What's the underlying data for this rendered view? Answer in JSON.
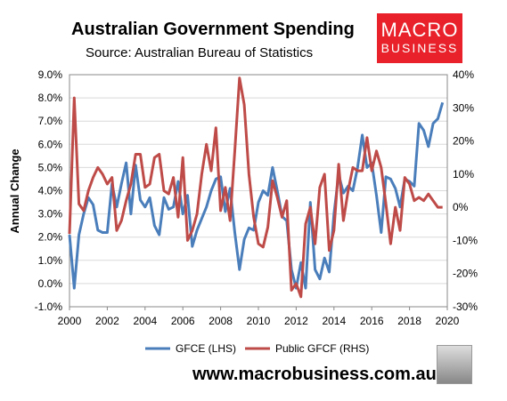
{
  "header": {
    "title": "Australian Government Spending",
    "subtitle": "Source: Australian Bureau of Statistics"
  },
  "logo": {
    "line1": "MACRO",
    "line2": "BUSINESS",
    "bg_color": "#e8212a"
  },
  "footer": {
    "url": "www.macrobusiness.com.au",
    "icon": "wolf-head-icon"
  },
  "chart_data": {
    "type": "line",
    "ylabel": "Annual Change",
    "x_ticks": [
      "2000",
      "2002",
      "2004",
      "2006",
      "2008",
      "2010",
      "2012",
      "2014",
      "2016",
      "2018",
      "2020"
    ],
    "xlim": [
      2000,
      2020
    ],
    "y_left_ticks": [
      "-1.0%",
      "0.0%",
      "1.0%",
      "2.0%",
      "3.0%",
      "4.0%",
      "5.0%",
      "6.0%",
      "7.0%",
      "8.0%",
      "9.0%"
    ],
    "y_left_lim": [
      -1,
      9
    ],
    "y_right_ticks": [
      "-30%",
      "-20%",
      "-10%",
      "0%",
      "10%",
      "20%",
      "30%",
      "40%"
    ],
    "y_right_lim": [
      -30,
      40
    ],
    "grid": true,
    "legend_position": "bottom",
    "series": [
      {
        "name": "GFCE (LHS)",
        "axis": "left",
        "color": "#4a7ebb",
        "x": [
          2000,
          2000.25,
          2000.5,
          2000.75,
          2001,
          2001.25,
          2001.5,
          2001.75,
          2002,
          2002.25,
          2002.5,
          2002.75,
          2003,
          2003.25,
          2003.5,
          2003.75,
          2004,
          2004.25,
          2004.5,
          2004.75,
          2005,
          2005.25,
          2005.5,
          2005.75,
          2006,
          2006.25,
          2006.5,
          2006.75,
          2007,
          2007.25,
          2007.5,
          2007.75,
          2008,
          2008.25,
          2008.5,
          2008.75,
          2009,
          2009.25,
          2009.5,
          2009.75,
          2010,
          2010.25,
          2010.5,
          2010.75,
          2011,
          2011.25,
          2011.5,
          2011.75,
          2012,
          2012.25,
          2012.5,
          2012.75,
          2013,
          2013.25,
          2013.5,
          2013.75,
          2014,
          2014.25,
          2014.5,
          2014.75,
          2015,
          2015.25,
          2015.5,
          2015.75,
          2016,
          2016.25,
          2016.5,
          2016.75,
          2017,
          2017.25,
          2017.5,
          2017.75,
          2018,
          2018.25,
          2018.5,
          2018.75,
          2019,
          2019.25,
          2019.5,
          2019.75
        ],
        "y": [
          2.1,
          -0.2,
          2.1,
          3.0,
          3.7,
          3.4,
          2.3,
          2.2,
          2.2,
          4.3,
          3.3,
          4.3,
          5.2,
          3.0,
          5.1,
          3.6,
          3.3,
          3.7,
          2.5,
          2.1,
          3.7,
          3.2,
          3.3,
          4.4,
          3.0,
          3.8,
          1.6,
          2.3,
          2.8,
          3.3,
          4.0,
          4.5,
          4.6,
          3.1,
          4.1,
          2.2,
          0.6,
          1.9,
          2.4,
          2.3,
          3.5,
          4.0,
          3.8,
          5.0,
          4.0,
          2.9,
          2.7,
          0.6,
          -0.2,
          0.9,
          -0.2,
          3.5,
          0.6,
          0.2,
          1.1,
          0.5,
          3.0,
          4.7,
          3.9,
          4.2,
          4.0,
          5.0,
          6.4,
          5.0,
          5.2,
          3.8,
          2.2,
          4.6,
          4.5,
          4.1,
          3.3,
          4.5,
          4.4,
          4.2,
          6.9,
          6.6,
          5.9,
          6.9,
          7.1,
          7.8
        ]
      },
      {
        "name": "Public GFCF (RHS)",
        "axis": "right",
        "color": "#be4b48",
        "x": [
          2000,
          2000.25,
          2000.5,
          2000.75,
          2001,
          2001.25,
          2001.5,
          2001.75,
          2002,
          2002.25,
          2002.5,
          2002.75,
          2003,
          2003.25,
          2003.5,
          2003.75,
          2004,
          2004.25,
          2004.5,
          2004.75,
          2005,
          2005.25,
          2005.5,
          2005.75,
          2006,
          2006.25,
          2006.5,
          2006.75,
          2007,
          2007.25,
          2007.5,
          2007.75,
          2008,
          2008.25,
          2008.5,
          2008.75,
          2009,
          2009.25,
          2009.5,
          2009.75,
          2010,
          2010.25,
          2010.5,
          2010.75,
          2011,
          2011.25,
          2011.5,
          2011.75,
          2012,
          2012.25,
          2012.5,
          2012.75,
          2013,
          2013.25,
          2013.5,
          2013.75,
          2014,
          2014.25,
          2014.5,
          2014.75,
          2015,
          2015.25,
          2015.5,
          2015.75,
          2016,
          2016.25,
          2016.5,
          2016.75,
          2017,
          2017.25,
          2017.5,
          2017.75,
          2018,
          2018.25,
          2018.5,
          2018.75,
          2019,
          2019.25,
          2019.5,
          2019.75
        ],
        "y": [
          -8,
          33,
          1,
          -1,
          5,
          9,
          12,
          10,
          7,
          9,
          -7,
          -4,
          2,
          7,
          16,
          16,
          6,
          7,
          15,
          16,
          5,
          4,
          9,
          -3,
          15,
          -10,
          -7,
          -2,
          10,
          19,
          11,
          24,
          -1,
          6,
          -4,
          17,
          39,
          31,
          10,
          -3,
          -11,
          -12,
          -6,
          8,
          3,
          -3,
          2,
          -25,
          -23,
          -27,
          -5,
          0,
          -11,
          6,
          10,
          -13,
          -7,
          13,
          -4,
          5,
          12,
          11,
          11,
          21,
          11,
          17,
          12,
          1,
          -11,
          0,
          -7,
          9,
          7,
          2,
          3,
          2,
          4,
          2,
          0,
          0
        ]
      }
    ]
  }
}
